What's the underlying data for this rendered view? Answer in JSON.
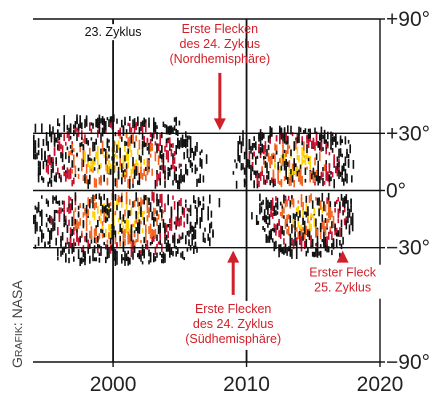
{
  "chart_data": {
    "type": "heatmap",
    "title": "",
    "xlabel": "",
    "ylabel": "",
    "xlim": [
      1994,
      2020
    ],
    "ylim": [
      -90,
      90
    ],
    "x_ticks": [
      {
        "value": 2000,
        "label": "2000"
      },
      {
        "value": 2010,
        "label": "2010"
      },
      {
        "value": 2020,
        "label": "2020"
      }
    ],
    "y_ticks": [
      {
        "value": 90,
        "label": "+90°"
      },
      {
        "value": 30,
        "label": "+30°"
      },
      {
        "value": 0,
        "label": "0°"
      },
      {
        "value": -30,
        "label": "−30°"
      },
      {
        "value": -90,
        "label": "−90°"
      }
    ],
    "gridlines": {
      "x": [
        2000,
        2010
      ],
      "y": [
        30,
        0,
        -30
      ]
    },
    "colors": {
      "low": "#111111",
      "mid": "#c8102e",
      "high": "#f26522",
      "peak": "#ffd200",
      "annotation": "#d0202a",
      "grid": "#111111"
    },
    "regions": [
      {
        "x_start": 1994,
        "x_end": 2009,
        "lat_min": 3,
        "lat_max": 38,
        "peak_x": 2000,
        "peak_lat": 16
      },
      {
        "x_start": 1994,
        "x_end": 2009,
        "lat_min": -38,
        "lat_max": -3,
        "peak_x": 2000.5,
        "peak_lat": -15
      },
      {
        "x_start": 2008,
        "x_end": 2018,
        "lat_min": 3,
        "lat_max": 32,
        "peak_x": 2013.5,
        "peak_lat": 14
      },
      {
        "x_start": 2009.5,
        "x_end": 2018,
        "lat_min": -34,
        "lat_max": -3,
        "peak_x": 2014.5,
        "peak_lat": -14
      }
    ],
    "annotations": [
      {
        "lines": [
          "23. Zyklus"
        ],
        "color": "black",
        "x": 2000,
        "lat": 81
      },
      {
        "lines": [
          "Erste Flecken",
          "des 24. Zyklus",
          "(Nordhemisphäre)"
        ],
        "color": "red",
        "x": 2008,
        "lat": 58,
        "arrow": "down"
      },
      {
        "lines": [
          "Erste Flecken",
          "des 24. Zyklus",
          "(Südhemisphäre)"
        ],
        "color": "red",
        "x": 2009,
        "lat": -59,
        "arrow": "up"
      },
      {
        "lines": [
          "Erster Fleck",
          "25. Zyklus"
        ],
        "color": "red",
        "x": 2017.2,
        "lat": -40,
        "arrow": "up"
      }
    ]
  },
  "credit": {
    "prefix_large": "G",
    "prefix_small": "RAFIK",
    "rest": ": NASA"
  }
}
